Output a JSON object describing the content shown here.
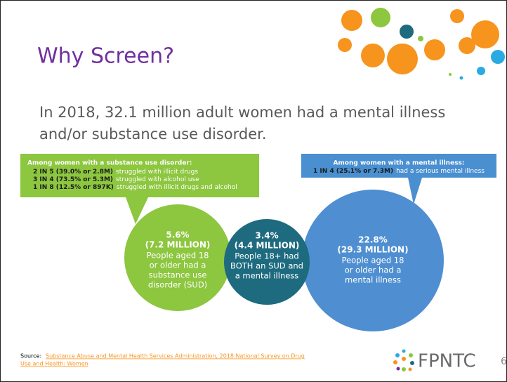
{
  "header": {
    "title": "Why Screen?"
  },
  "subtitle": [
    "In 2018, 32.1 million adult women had a mental illness",
    "and/or substance use disorder."
  ],
  "sud_callout": {
    "heading": "Among women with a substance use disorder:",
    "lines": [
      {
        "bold": "2 IN 5 (39.0% or 2.8M)",
        "text": "struggled with illicit drugs"
      },
      {
        "bold": "3 IN 4 (73.5% or 5.3M)",
        "text": "struggled with alcohol use"
      },
      {
        "bold": "1 IN 8 (12.5% or 897K)",
        "text": "struggled with illicit drugs and alcohol"
      }
    ]
  },
  "mi_callout": {
    "heading": "Among women with a mental illness:",
    "lines": [
      {
        "bold": "1 IN 4 (25.1% or 7.3M)",
        "text": "had a serious mental illness"
      }
    ]
  },
  "circles": [
    {
      "stat": "5.6%",
      "count": "(7.2 MILLION)",
      "text": [
        "People aged 18",
        "or older had a",
        "substance use",
        "disorder (SUD)"
      ]
    },
    {
      "stat": "3.4%",
      "count": "(4.4 MILLION)",
      "text": [
        "People 18+ had",
        "BOTH an SUD and",
        "a mental illness"
      ]
    },
    {
      "stat": "22.8%",
      "count": "(29.3 MILLION)",
      "text": [
        "People aged 18",
        "or older had a",
        "mental illness"
      ]
    }
  ],
  "footer": {
    "source_label": "Source:",
    "source_link": [
      "Substance Abuse and Mental Health Services Administration, 2018 National Survey on Drug",
      "Use and Health: Women"
    ],
    "logo": "FPNTC",
    "page_number": "6"
  }
}
